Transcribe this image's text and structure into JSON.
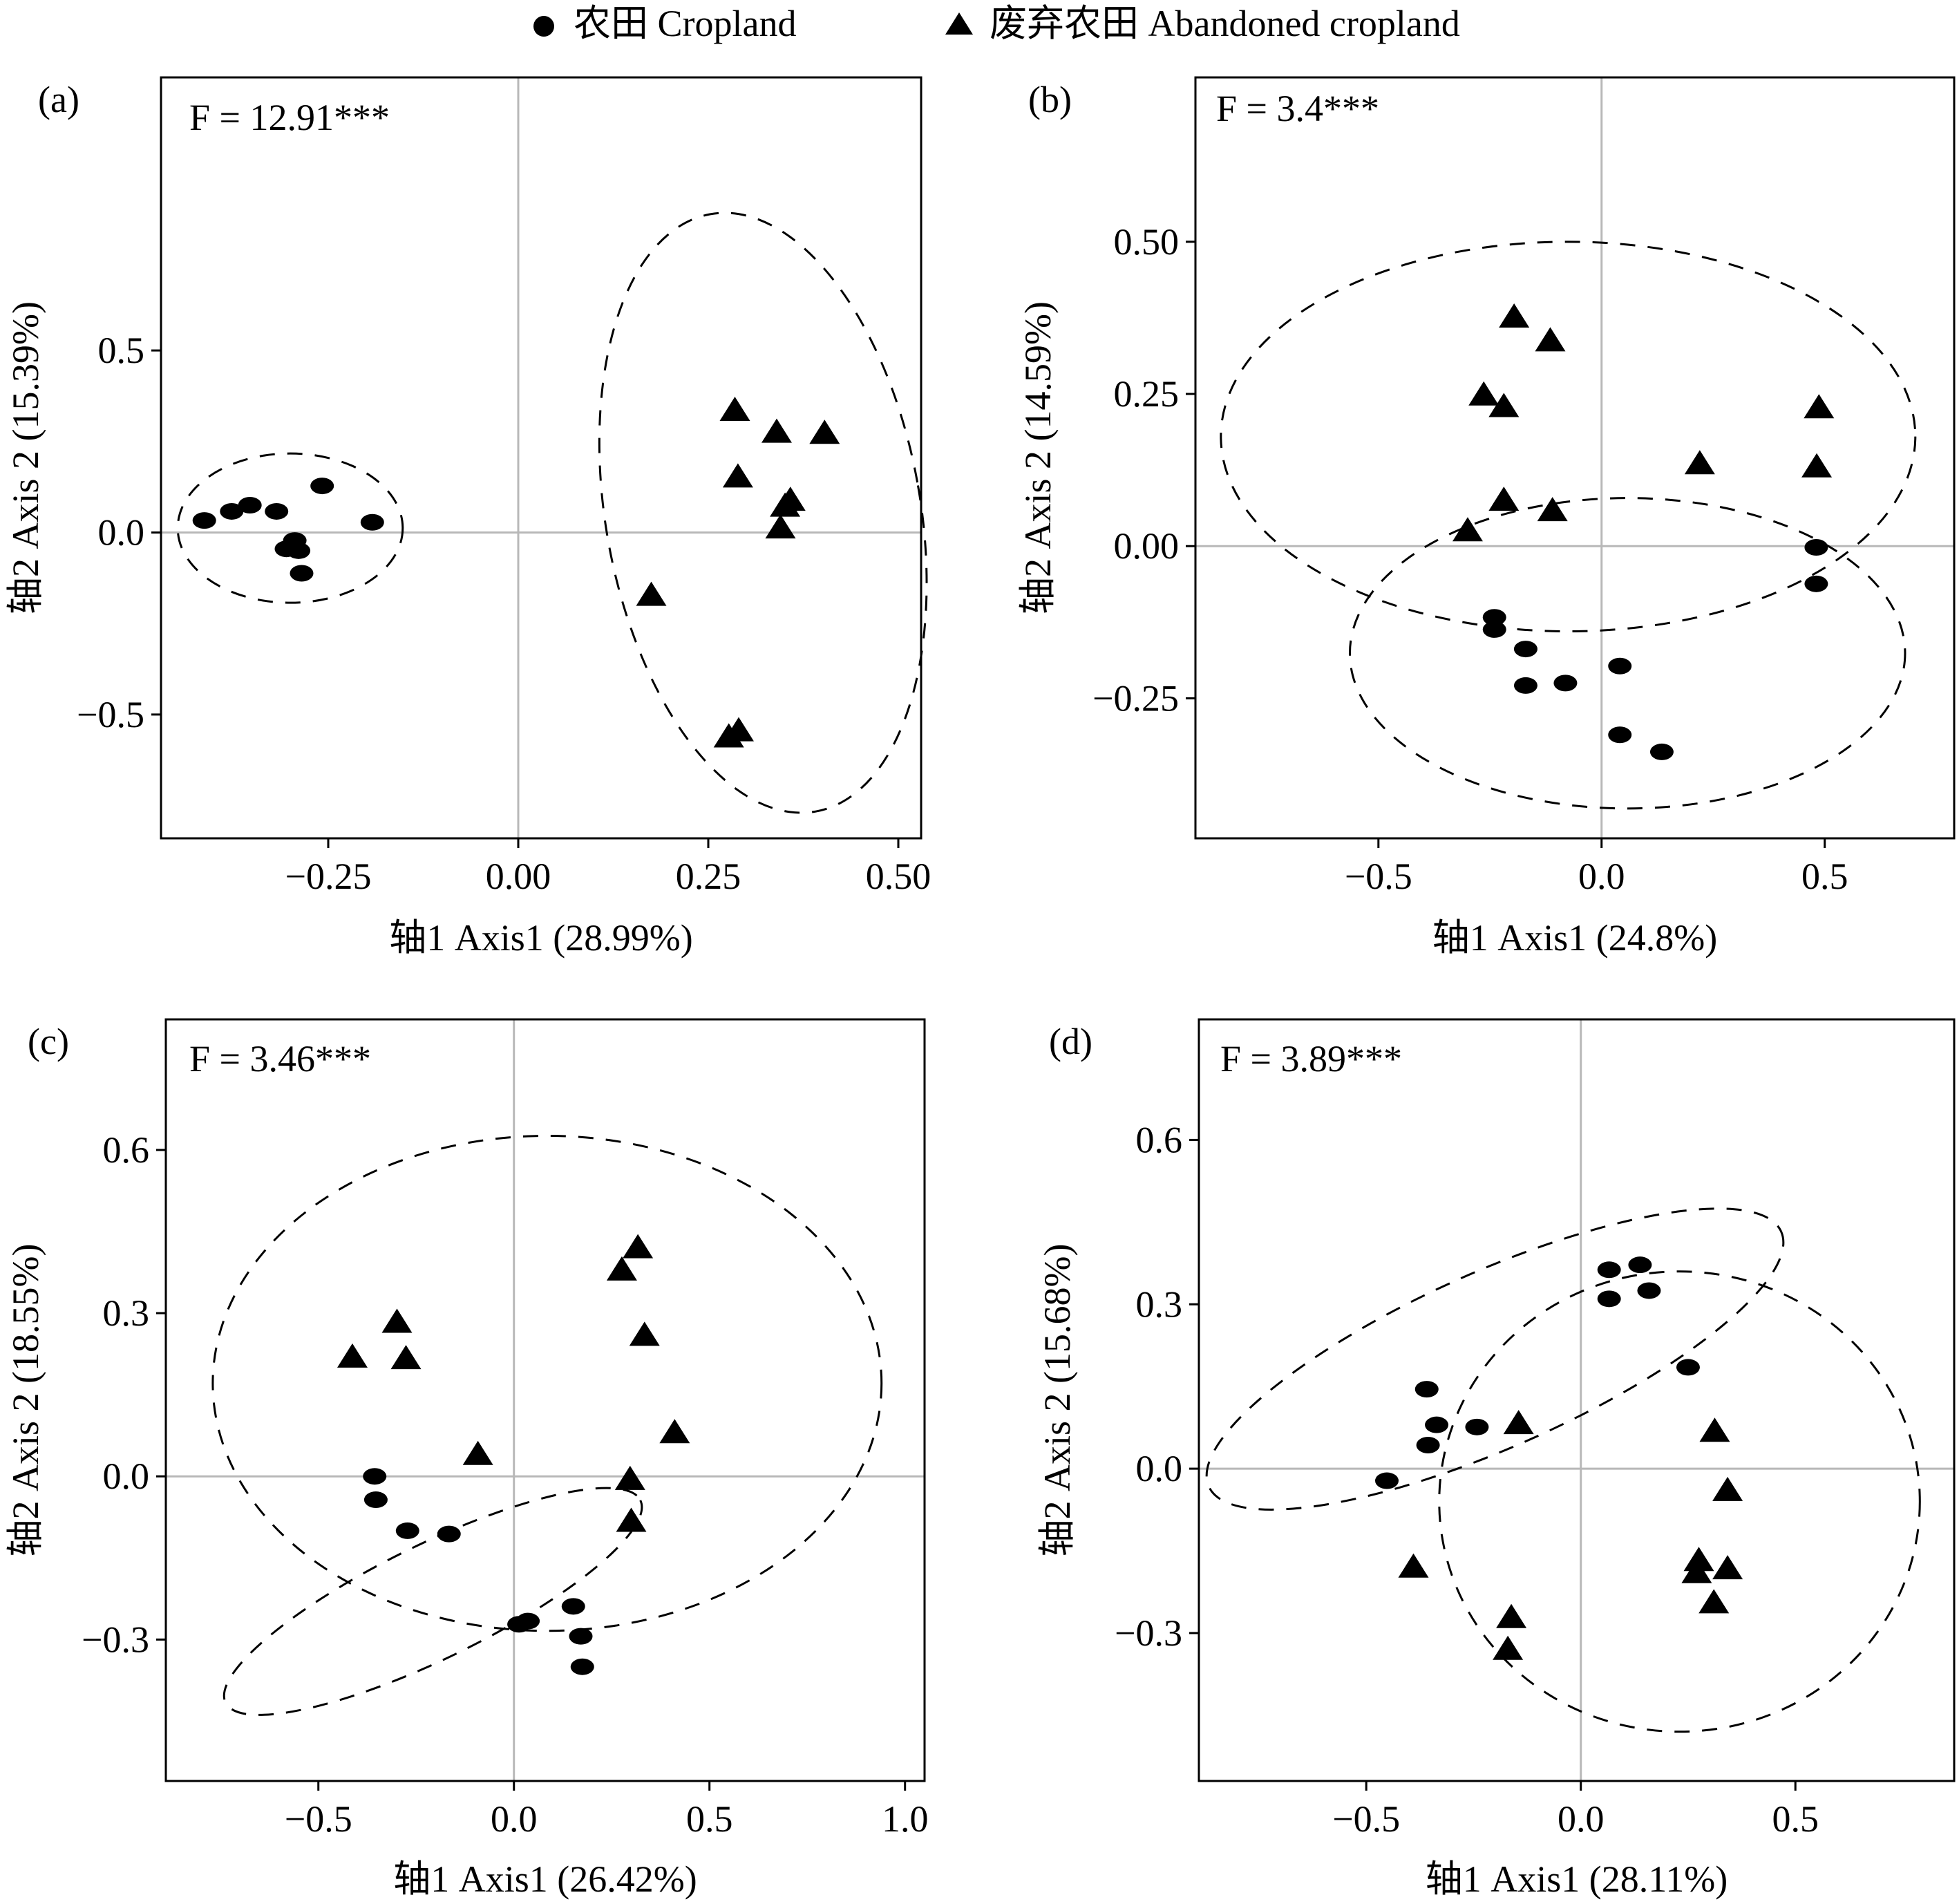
{
  "legend": {
    "cropland_label": "农田 Cropland",
    "abandoned_label": "废弃农田 Abandoned cropland",
    "cropland_marker": "circle",
    "abandoned_marker": "triangle"
  },
  "chart_data": [
    {
      "id": "a",
      "type": "scatter",
      "panel_label": "(a)",
      "stat_text": "F = 12.91***",
      "xlabel": "轴1 Axis1 (28.99%)",
      "ylabel": "轴2 Axis 2 (15.39%)",
      "xlim": [
        -0.47,
        0.53
      ],
      "ylim": [
        -0.84,
        1.25
      ],
      "xticks": [
        -0.25,
        0.0,
        0.25,
        0.5
      ],
      "xtick_labels": [
        "−0.25",
        "0.00",
        "0.25",
        "0.50"
      ],
      "yticks": [
        -0.5,
        0.0,
        0.5
      ],
      "ytick_labels": [
        "−0.5",
        "0.0",
        "0.5"
      ],
      "grid": false,
      "series": [
        {
          "name": "农田 Cropland",
          "marker": "circle",
          "points": [
            [
              -0.413,
              0.033
            ],
            [
              -0.377,
              0.058
            ],
            [
              -0.353,
              0.075
            ],
            [
              -0.318,
              0.058
            ],
            [
              -0.258,
              0.128
            ],
            [
              -0.192,
              0.028
            ],
            [
              -0.294,
              -0.022
            ],
            [
              -0.305,
              -0.045
            ],
            [
              -0.289,
              -0.05
            ],
            [
              -0.285,
              -0.112
            ]
          ]
        },
        {
          "name": "废弃农田 Abandoned cropland",
          "marker": "triangle",
          "points": [
            [
              0.285,
              0.335
            ],
            [
              0.34,
              0.275
            ],
            [
              0.403,
              0.272
            ],
            [
              0.289,
              0.152
            ],
            [
              0.358,
              0.088
            ],
            [
              0.351,
              0.072
            ],
            [
              0.345,
              0.012
            ],
            [
              0.175,
              -0.173
            ],
            [
              0.29,
              -0.545
            ],
            [
              0.277,
              -0.562
            ]
          ]
        }
      ],
      "ellipses": [
        {
          "cx": -0.3,
          "cy": 0.012,
          "rx": 0.148,
          "ry": 0.205,
          "angle": 0
        },
        {
          "cx": 0.322,
          "cy": 0.054,
          "rx": 0.207,
          "ry": 0.833,
          "angle": -10
        }
      ]
    },
    {
      "id": "b",
      "type": "scatter",
      "panel_label": "(b)",
      "stat_text": "F = 3.4***",
      "xlabel": "轴1 Axis1 (24.8%)",
      "ylabel": "轴2 Axis 2 (14.59%)",
      "xlim": [
        -0.91,
        0.79
      ],
      "ylim": [
        -0.48,
        0.77
      ],
      "xticks": [
        -0.5,
        0.0,
        0.5
      ],
      "xtick_labels": [
        "−0.5",
        "0.0",
        "0.5"
      ],
      "yticks": [
        -0.25,
        0.0,
        0.25,
        0.5
      ],
      "ytick_labels": [
        "−0.25",
        "0.00",
        "0.25",
        "0.50"
      ],
      "grid": false,
      "series": [
        {
          "name": "农田 Cropland",
          "marker": "circle",
          "points": [
            [
              -0.24,
              -0.117
            ],
            [
              -0.24,
              -0.137
            ],
            [
              -0.17,
              -0.169
            ],
            [
              -0.17,
              -0.229
            ],
            [
              -0.081,
              -0.225
            ],
            [
              0.041,
              -0.197
            ],
            [
              0.041,
              -0.31
            ],
            [
              0.135,
              -0.338
            ],
            [
              0.481,
              -0.002
            ],
            [
              0.481,
              -0.062
            ]
          ]
        },
        {
          "name": "废弃农田 Abandoned cropland",
          "marker": "triangle",
          "points": [
            [
              -0.196,
              0.376
            ],
            [
              -0.115,
              0.337
            ],
            [
              -0.264,
              0.248
            ],
            [
              -0.219,
              0.229
            ],
            [
              -0.219,
              0.075
            ],
            [
              -0.11,
              0.058
            ],
            [
              -0.3,
              0.025
            ],
            [
              0.22,
              0.135
            ],
            [
              0.487,
              0.227
            ],
            [
              0.482,
              0.13
            ]
          ]
        }
      ],
      "ellipses": [
        {
          "cx": -0.075,
          "cy": 0.18,
          "rx": 0.778,
          "ry": 0.32,
          "angle": 0
        },
        {
          "cx": 0.058,
          "cy": -0.176,
          "rx": 0.622,
          "ry": 0.255,
          "angle": 0
        }
      ]
    },
    {
      "id": "c",
      "type": "scatter",
      "panel_label": "(c)",
      "stat_text": "F = 3.46***",
      "xlabel": "轴1 Axis1 (26.42%)",
      "ylabel": "轴2 Axis 2 (18.55%)",
      "xlim": [
        -0.89,
        1.05
      ],
      "ylim": [
        -0.56,
        0.84
      ],
      "xticks": [
        -0.5,
        0.0,
        0.5,
        1.0
      ],
      "xtick_labels": [
        "−0.5",
        "0.0",
        "0.5",
        "1.0"
      ],
      "yticks": [
        -0.3,
        0.0,
        0.3,
        0.6
      ],
      "ytick_labels": [
        "−0.3",
        "0.0",
        "0.3",
        "0.6"
      ],
      "grid": false,
      "series": [
        {
          "name": "农田 Cropland",
          "marker": "circle",
          "points": [
            [
              -0.356,
              0.0
            ],
            [
              -0.353,
              -0.043
            ],
            [
              -0.272,
              -0.1
            ],
            [
              -0.166,
              -0.106
            ],
            [
              0.013,
              -0.272
            ],
            [
              0.036,
              -0.266
            ],
            [
              0.152,
              -0.239
            ],
            [
              0.171,
              -0.294
            ],
            [
              0.175,
              -0.35
            ]
          ]
        },
        {
          "name": "废弃农田 Abandoned cropland",
          "marker": "triangle",
          "points": [
            [
              0.317,
              0.42
            ],
            [
              0.276,
              0.379
            ],
            [
              -0.299,
              0.283
            ],
            [
              -0.413,
              0.219
            ],
            [
              -0.276,
              0.216
            ],
            [
              0.334,
              0.259
            ],
            [
              0.411,
              0.08
            ],
            [
              -0.092,
              0.04
            ],
            [
              0.297,
              -0.006
            ],
            [
              0.3,
              -0.083
            ]
          ]
        }
      ],
      "ellipses": [
        {
          "cx": 0.085,
          "cy": 0.171,
          "rx": 0.855,
          "ry": 0.455,
          "angle": 0
        },
        {
          "cx": -0.207,
          "cy": -0.23,
          "rx": 0.59,
          "ry": 0.105,
          "angle": -26
        }
      ]
    },
    {
      "id": "d",
      "type": "scatter",
      "panel_label": "(d)",
      "stat_text": "F = 3.89***",
      "xlabel": "轴1 Axis1 (28.11%)",
      "ylabel": "轴2 Axis 2 (15.68%)",
      "xlim": [
        -0.89,
        0.87
      ],
      "ylim": [
        -0.57,
        0.82
      ],
      "xticks": [
        -0.5,
        0.0,
        0.5
      ],
      "xtick_labels": [
        "−0.5",
        "0.0",
        "0.5"
      ],
      "yticks": [
        -0.3,
        0.0,
        0.3,
        0.6
      ],
      "ytick_labels": [
        "−0.3",
        "0.0",
        "0.3",
        "0.6"
      ],
      "grid": false,
      "series": [
        {
          "name": "农田 Cropland",
          "marker": "circle",
          "points": [
            [
              0.066,
              0.363
            ],
            [
              0.138,
              0.372
            ],
            [
              0.066,
              0.31
            ],
            [
              0.159,
              0.325
            ],
            [
              0.25,
              0.185
            ],
            [
              -0.359,
              0.145
            ],
            [
              -0.336,
              0.08
            ],
            [
              -0.242,
              0.076
            ],
            [
              -0.356,
              0.043
            ],
            [
              -0.452,
              -0.022
            ]
          ]
        },
        {
          "name": "废弃农田 Abandoned cropland",
          "marker": "triangle",
          "points": [
            [
              -0.145,
              0.082
            ],
            [
              0.312,
              0.068
            ],
            [
              0.342,
              -0.04
            ],
            [
              0.275,
              -0.168
            ],
            [
              0.342,
              -0.183
            ],
            [
              0.27,
              -0.19
            ],
            [
              0.31,
              -0.245
            ],
            [
              -0.39,
              -0.18
            ],
            [
              -0.162,
              -0.272
            ],
            [
              -0.17,
              -0.33
            ]
          ]
        }
      ],
      "ellipses": [
        {
          "cx": -0.2,
          "cy": 0.2,
          "rx": 0.73,
          "ry": 0.16,
          "angle": -24
        },
        {
          "cx": 0.23,
          "cy": -0.06,
          "rx": 0.56,
          "ry": 0.42,
          "angle": 0
        }
      ]
    }
  ]
}
